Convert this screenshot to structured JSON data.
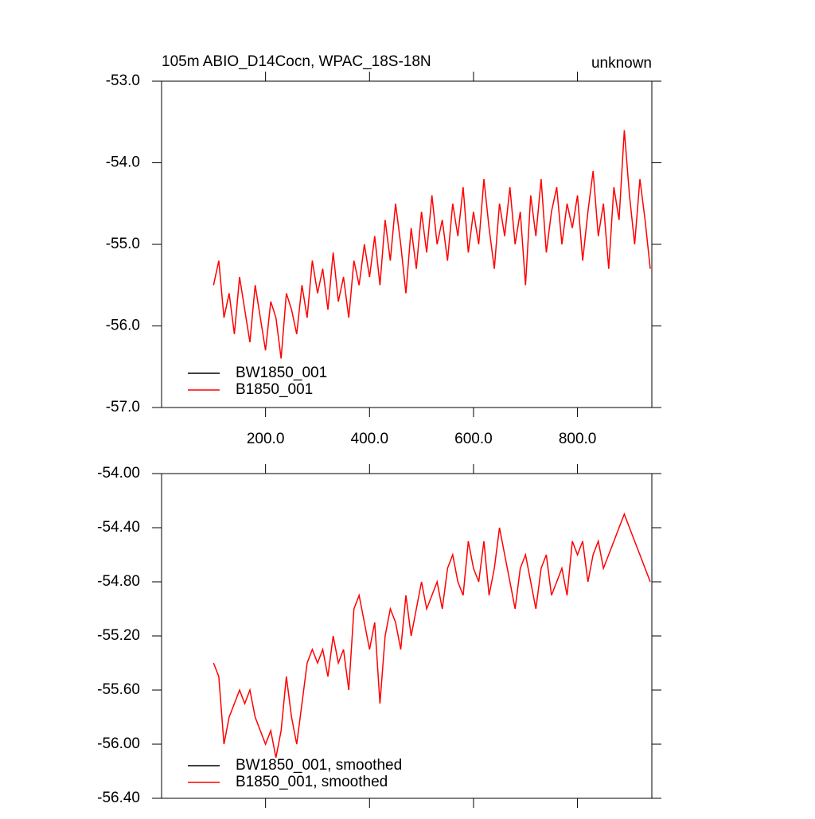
{
  "chart_data": [
    {
      "type": "line",
      "title": "105m ABIO_D14Cocn, WPAC_18S-18N",
      "title_right": "unknown",
      "x": [
        100,
        110,
        120,
        130,
        140,
        150,
        160,
        170,
        180,
        190,
        200,
        210,
        220,
        230,
        240,
        250,
        260,
        270,
        280,
        290,
        300,
        310,
        320,
        330,
        340,
        350,
        360,
        370,
        380,
        390,
        400,
        410,
        420,
        430,
        440,
        450,
        460,
        470,
        480,
        490,
        500,
        510,
        520,
        530,
        540,
        550,
        560,
        570,
        580,
        590,
        600,
        610,
        620,
        630,
        640,
        650,
        660,
        670,
        680,
        690,
        700,
        710,
        720,
        730,
        740,
        750,
        760,
        770,
        780,
        790,
        800,
        810,
        820,
        830,
        840,
        850,
        860,
        870,
        880,
        890,
        900,
        910,
        920,
        930,
        940
      ],
      "series": [
        {
          "name": "BW1850_001",
          "color": "#000000",
          "values": [
            null,
            null,
            null,
            null,
            null,
            null,
            null,
            null,
            null,
            null,
            null,
            null,
            null,
            null,
            null,
            null,
            null,
            null,
            null,
            null,
            null,
            null,
            null,
            null,
            null,
            null,
            null,
            null,
            null,
            null,
            null,
            null,
            null,
            null,
            null,
            null,
            null,
            null,
            null,
            null,
            null,
            null,
            null,
            null,
            null,
            null,
            null,
            null,
            null,
            null,
            null,
            null,
            null,
            null,
            null,
            null,
            null,
            null,
            null,
            null,
            null,
            null,
            null,
            null,
            null,
            null,
            null,
            null,
            null,
            null,
            null,
            null,
            null,
            null,
            null,
            null,
            null,
            null,
            null,
            null,
            null,
            null,
            null,
            null,
            null
          ]
        },
        {
          "name": "B1850_001",
          "color": "#ff0000",
          "values": [
            -55.5,
            -55.2,
            -55.9,
            -55.6,
            -56.1,
            -55.4,
            -55.8,
            -56.2,
            -55.5,
            -55.9,
            -56.3,
            -55.7,
            -55.9,
            -56.4,
            -55.6,
            -55.8,
            -56.1,
            -55.5,
            -55.9,
            -55.2,
            -55.6,
            -55.3,
            -55.8,
            -55.1,
            -55.7,
            -55.4,
            -55.9,
            -55.2,
            -55.5,
            -55.0,
            -55.4,
            -54.9,
            -55.5,
            -54.7,
            -55.2,
            -54.5,
            -55.0,
            -55.6,
            -54.8,
            -55.3,
            -54.6,
            -55.1,
            -54.4,
            -55.0,
            -54.7,
            -55.2,
            -54.5,
            -54.9,
            -54.3,
            -55.1,
            -54.6,
            -55.0,
            -54.2,
            -54.8,
            -55.3,
            -54.5,
            -54.9,
            -54.3,
            -55.0,
            -54.6,
            -55.5,
            -54.4,
            -54.9,
            -54.2,
            -55.1,
            -54.6,
            -54.3,
            -55.0,
            -54.5,
            -54.8,
            -54.4,
            -55.2,
            -54.6,
            -54.1,
            -54.9,
            -54.5,
            -55.3,
            -54.3,
            -54.7,
            -53.6,
            -54.4,
            -55.0,
            -54.2,
            -54.7,
            -55.3
          ]
        }
      ],
      "xlim": [
        0,
        943
      ],
      "ylim": [
        -57,
        -53
      ],
      "xticks": [
        {
          "value": 200,
          "label": "200.0"
        },
        {
          "value": 400,
          "label": "400.0"
        },
        {
          "value": 600,
          "label": "600.0"
        },
        {
          "value": 800,
          "label": "800.0"
        }
      ],
      "yticks": [
        {
          "value": -57,
          "label": "-57.0"
        },
        {
          "value": -56,
          "label": "-56.0"
        },
        {
          "value": -55,
          "label": "-55.0"
        },
        {
          "value": -54,
          "label": "-54.0"
        },
        {
          "value": -53,
          "label": "-53.0"
        }
      ]
    },
    {
      "type": "line",
      "x": [
        100,
        110,
        120,
        130,
        140,
        150,
        160,
        170,
        180,
        190,
        200,
        210,
        220,
        230,
        240,
        250,
        260,
        270,
        280,
        290,
        300,
        310,
        320,
        330,
        340,
        350,
        360,
        370,
        380,
        390,
        400,
        410,
        420,
        430,
        440,
        450,
        460,
        470,
        480,
        490,
        500,
        510,
        520,
        530,
        540,
        550,
        560,
        570,
        580,
        590,
        600,
        610,
        620,
        630,
        640,
        650,
        660,
        670,
        680,
        690,
        700,
        710,
        720,
        730,
        740,
        750,
        760,
        770,
        780,
        790,
        800,
        810,
        820,
        830,
        840,
        850,
        860,
        870,
        880,
        890,
        900,
        910,
        920,
        930,
        940
      ],
      "series": [
        {
          "name": "BW1850_001, smoothed",
          "color": "#000000",
          "values": [
            null,
            null,
            null,
            null,
            null,
            null,
            null,
            null,
            null,
            null,
            null,
            null,
            null,
            null,
            null,
            null,
            null,
            null,
            null,
            null,
            null,
            null,
            null,
            null,
            null,
            null,
            null,
            null,
            null,
            null,
            null,
            null,
            null,
            null,
            null,
            null,
            null,
            null,
            null,
            null,
            null,
            null,
            null,
            null,
            null,
            null,
            null,
            null,
            null,
            null,
            null,
            null,
            null,
            null,
            null,
            null,
            null,
            null,
            null,
            null,
            null,
            null,
            null,
            null,
            null,
            null,
            null,
            null,
            null,
            null,
            null,
            null,
            null,
            null,
            null,
            null,
            null,
            null,
            null,
            null,
            null,
            null,
            null,
            null,
            null
          ]
        },
        {
          "name": "B1850_001, smoothed",
          "color": "#ff0000",
          "values": [
            -55.4,
            -55.5,
            -56.0,
            -55.8,
            -55.7,
            -55.6,
            -55.7,
            -55.6,
            -55.8,
            -55.9,
            -56.0,
            -55.9,
            -56.1,
            -55.9,
            -55.5,
            -55.8,
            -56.0,
            -55.7,
            -55.4,
            -55.3,
            -55.4,
            -55.3,
            -55.5,
            -55.2,
            -55.4,
            -55.3,
            -55.6,
            -55.0,
            -54.9,
            -55.1,
            -55.3,
            -55.1,
            -55.7,
            -55.2,
            -55.0,
            -55.1,
            -55.3,
            -54.9,
            -55.2,
            -55.0,
            -54.8,
            -55.0,
            -54.9,
            -54.8,
            -55.0,
            -54.7,
            -54.6,
            -54.8,
            -54.9,
            -54.5,
            -54.7,
            -54.8,
            -54.5,
            -54.9,
            -54.7,
            -54.4,
            -54.6,
            -54.8,
            -55.0,
            -54.7,
            -54.6,
            -54.8,
            -55.0,
            -54.7,
            -54.6,
            -54.9,
            -54.8,
            -54.7,
            -54.9,
            -54.5,
            -54.6,
            -54.5,
            -54.8,
            -54.6,
            -54.5,
            -54.7,
            -54.6,
            -54.5,
            -54.4,
            -54.3,
            -54.4,
            -54.5,
            -54.6,
            -54.7,
            -54.8
          ]
        }
      ],
      "xlim": [
        0,
        943
      ],
      "ylim": [
        -56.4,
        -54
      ],
      "yticks": [
        {
          "value": -56.4,
          "label": "-56.40"
        },
        {
          "value": -56,
          "label": "-56.00"
        },
        {
          "value": -55.6,
          "label": "-55.60"
        },
        {
          "value": -55.2,
          "label": "-55.20"
        },
        {
          "value": -54.8,
          "label": "-54.80"
        },
        {
          "value": -54.4,
          "label": "-54.40"
        },
        {
          "value": -54,
          "label": "-54.00"
        }
      ]
    }
  ]
}
